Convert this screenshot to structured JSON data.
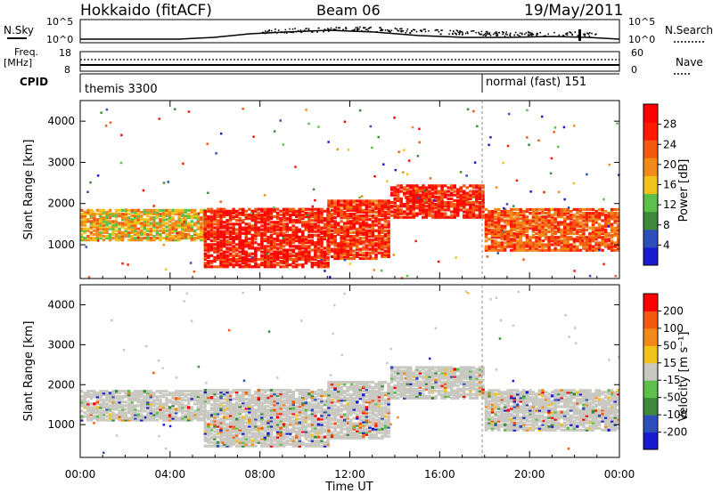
{
  "header": {
    "station": "Hokkaido (fitACF)",
    "beam": "Beam 06",
    "date": "19/May/2011"
  },
  "top_panel": {
    "nsky_label": "N.Sky",
    "nsearch_label": "N.Search",
    "tick_high": "10^5",
    "tick_low": "10^0",
    "freq_label": "Freq.",
    "freq_unit": "[MHz]",
    "freq_ticks": [
      "18",
      "8"
    ],
    "nave_label": "Nave",
    "nave_ticks": [
      "60",
      "0"
    ],
    "cpid_label": "CPID",
    "cpid_segments": [
      {
        "label": "themis 3300",
        "start": "00:00",
        "end": "18:00"
      },
      {
        "label": "normal (fast) 151",
        "start": "18:00",
        "end": "24:00"
      }
    ]
  },
  "chart_data": [
    {
      "type": "heatmap",
      "title": "",
      "xlabel": "",
      "ylabel": "Slant Range [km]",
      "x_ticks": [
        "00:00",
        "04:00",
        "08:00",
        "12:00",
        "16:00",
        "20:00",
        "00:00"
      ],
      "y_ticks": [
        1000,
        2000,
        3000,
        4000
      ],
      "xlim_hours": [
        0,
        24
      ],
      "ylim_km": [
        180,
        4500
      ],
      "colorbar": {
        "label": "Power [dB]",
        "ticks": [
          "28",
          "24",
          "20",
          "16",
          "12",
          "8",
          "4"
        ],
        "colors": [
          "#1a1ad0",
          "#2e4fb8",
          "#3d8a3d",
          "#5cc04a",
          "#f2c21a",
          "#f28a1a",
          "#f25a10",
          "#ff1a00",
          "#ff0000"
        ]
      },
      "echo_bands": [
        {
          "start_h": 0.0,
          "end_h": 5.5,
          "range_km": [
            1150,
            1900
          ],
          "level": 0.55
        },
        {
          "start_h": 5.5,
          "end_h": 11.0,
          "range_km": [
            500,
            1900
          ],
          "level": 0.9
        },
        {
          "start_h": 11.0,
          "end_h": 13.8,
          "range_km": [
            700,
            2100
          ],
          "level": 0.85
        },
        {
          "start_h": 13.8,
          "end_h": 18.0,
          "range_km": [
            1700,
            2500
          ],
          "level": 0.9
        },
        {
          "start_h": 18.0,
          "end_h": 24.0,
          "range_km": [
            900,
            1900
          ],
          "level": 0.75
        }
      ]
    },
    {
      "type": "heatmap",
      "title": "",
      "xlabel": "Time UT",
      "ylabel": "Slant Range [km]",
      "x_ticks": [
        "00:00",
        "04:00",
        "08:00",
        "12:00",
        "16:00",
        "20:00",
        "00:00"
      ],
      "y_ticks": [
        1000,
        2000,
        3000,
        4000
      ],
      "xlim_hours": [
        0,
        24
      ],
      "ylim_km": [
        180,
        4500
      ],
      "colorbar": {
        "label": "Velocity [m s⁻¹]",
        "ticks": [
          "200",
          "100",
          "50",
          "15",
          "-15",
          "-50",
          "-100",
          "-200"
        ],
        "colors": [
          "#1a1ad0",
          "#2e4fb8",
          "#3d8a3d",
          "#5cc04a",
          "#c8c8c0",
          "#f2c21a",
          "#f28a1a",
          "#f25a10",
          "#ff0000"
        ]
      }
    }
  ],
  "colors": {
    "ground_scatter": "#c8c8c0",
    "axis": "#000000"
  }
}
